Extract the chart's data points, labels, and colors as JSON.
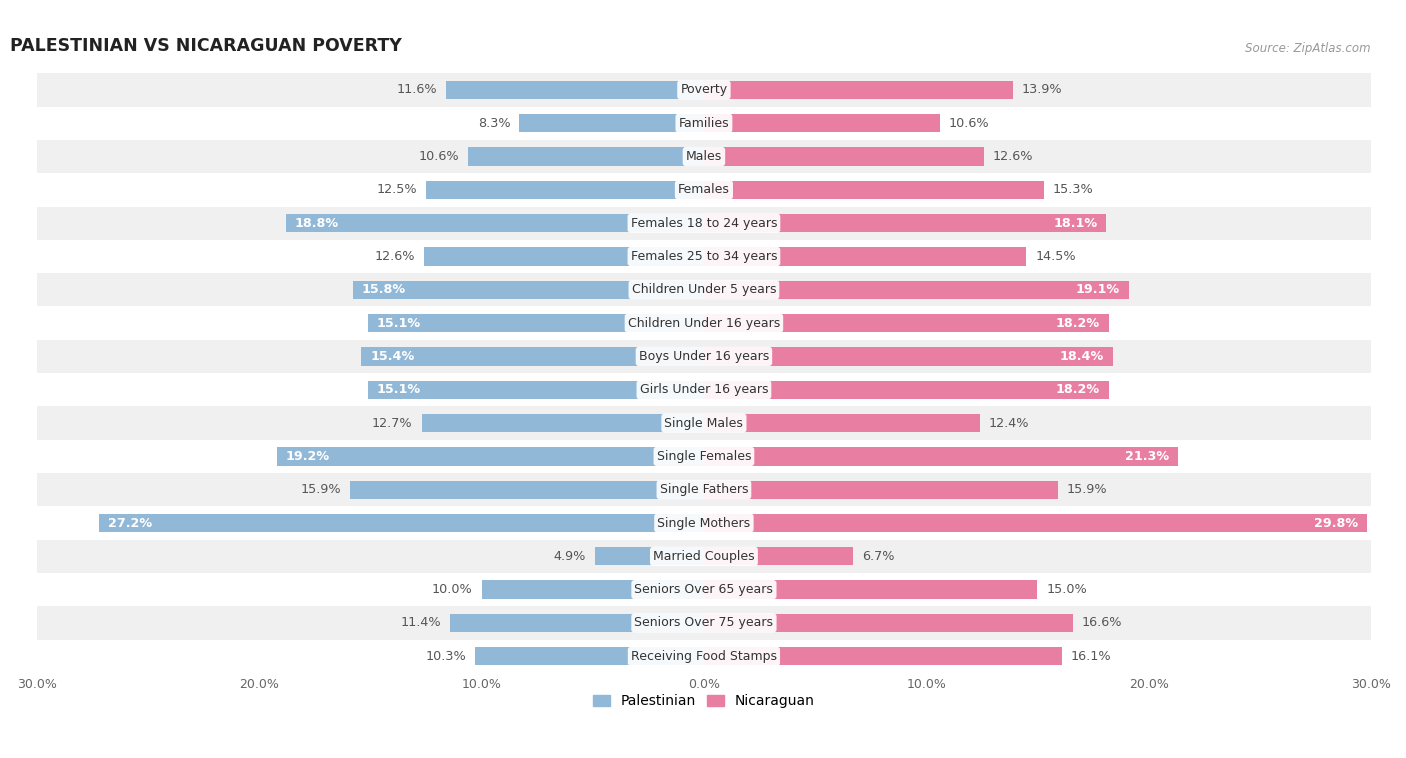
{
  "title": "PALESTINIAN VS NICARAGUAN POVERTY",
  "source": "Source: ZipAtlas.com",
  "categories": [
    "Poverty",
    "Families",
    "Males",
    "Females",
    "Females 18 to 24 years",
    "Females 25 to 34 years",
    "Children Under 5 years",
    "Children Under 16 years",
    "Boys Under 16 years",
    "Girls Under 16 years",
    "Single Males",
    "Single Females",
    "Single Fathers",
    "Single Mothers",
    "Married Couples",
    "Seniors Over 65 years",
    "Seniors Over 75 years",
    "Receiving Food Stamps"
  ],
  "palestinian": [
    11.6,
    8.3,
    10.6,
    12.5,
    18.8,
    12.6,
    15.8,
    15.1,
    15.4,
    15.1,
    12.7,
    19.2,
    15.9,
    27.2,
    4.9,
    10.0,
    11.4,
    10.3
  ],
  "nicaraguan": [
    13.9,
    10.6,
    12.6,
    15.3,
    18.1,
    14.5,
    19.1,
    18.2,
    18.4,
    18.2,
    12.4,
    21.3,
    15.9,
    29.8,
    6.7,
    15.0,
    16.6,
    16.1
  ],
  "palestinian_color": "#92b8d8",
  "nicaraguan_color": "#e87ea1",
  "background_row_light": "#f0f0f0",
  "background_row_white": "#ffffff",
  "highlighted_rows": [
    4,
    6,
    7,
    8,
    9,
    11,
    13
  ],
  "x_max": 30.0,
  "legend_labels": [
    "Palestinian",
    "Nicaraguan"
  ],
  "bar_height": 0.55,
  "label_fontsize": 9.2,
  "value_fontsize": 9.2,
  "title_fontsize": 12.5,
  "cat_label_fontsize": 9.0
}
